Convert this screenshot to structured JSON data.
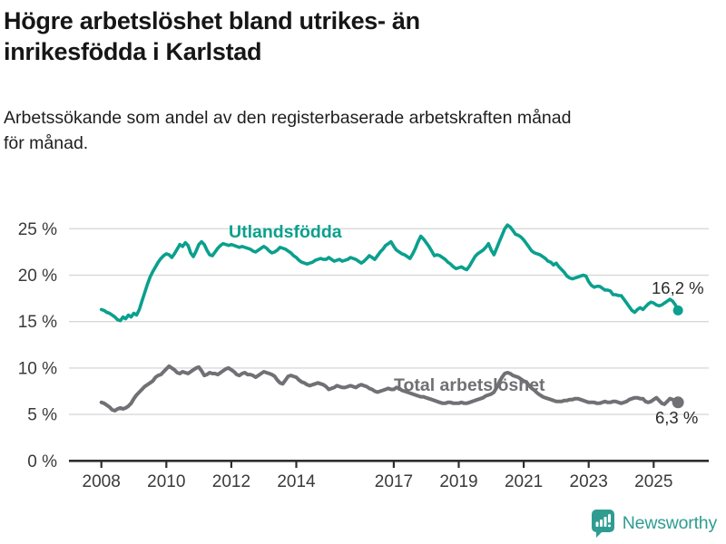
{
  "header": {
    "title": "Högre arbetslöshet bland utrikes- än\ninrikesfödda i Karlstad",
    "subtitle": "Arbetssökande som andel av den registerbaserade arbetskraften månad\nför månad."
  },
  "colors": {
    "series_teal": "#0aa08d",
    "series_gray": "#707075",
    "grid": "#d9d9d9",
    "axis": "#2e2e2e",
    "tick_text": "#3a3a3a",
    "brand_teal": "#2f9c92"
  },
  "chart_data": {
    "type": "line",
    "title": "Högre arbetslöshet bland utrikes- än inrikesfödda i Karlstad",
    "subtitle": "Arbetssökande som andel av den registerbaserade arbetskraften månad för månad.",
    "grid": true,
    "x_axis": {
      "ticks": [
        2008,
        2010,
        2012,
        2014,
        2017,
        2019,
        2021,
        2023,
        2025
      ],
      "tick_labels": [
        "2008",
        "2010",
        "2012",
        "2014",
        "2017",
        "2019",
        "2021",
        "2023",
        "2025"
      ],
      "range": [
        2008.0,
        2025.75
      ]
    },
    "y_axis": {
      "unit": "%",
      "ticks": [
        0,
        5,
        10,
        15,
        20,
        25
      ],
      "tick_labels": [
        "0 %",
        "5 %",
        "10 %",
        "15 %",
        "20 %",
        "25 %"
      ],
      "range": [
        0,
        25
      ]
    },
    "series": [
      {
        "name": "Utlandsfödda",
        "color": "#0aa08d",
        "start": 2008.0,
        "step_years": 0.0833333,
        "end_value": 16.2,
        "end_label": "16,2 %",
        "values": [
          16.3,
          16.2,
          16.0,
          15.9,
          15.7,
          15.5,
          15.2,
          15.1,
          15.5,
          15.3,
          15.7,
          15.5,
          15.9,
          15.7,
          16.3,
          17.2,
          18.1,
          19.0,
          19.8,
          20.4,
          20.9,
          21.4,
          21.8,
          22.1,
          22.3,
          22.2,
          21.9,
          22.3,
          22.8,
          23.3,
          23.1,
          23.5,
          23.2,
          22.4,
          22.0,
          22.6,
          23.3,
          23.6,
          23.3,
          22.7,
          22.2,
          22.1,
          22.5,
          22.9,
          23.2,
          23.4,
          23.3,
          23.2,
          23.3,
          23.2,
          23.1,
          23.0,
          23.1,
          23.0,
          22.9,
          22.8,
          22.6,
          22.5,
          22.7,
          22.9,
          23.1,
          22.9,
          22.6,
          22.4,
          22.5,
          22.7,
          23.0,
          22.9,
          22.8,
          22.6,
          22.4,
          22.1,
          21.9,
          21.6,
          21.4,
          21.3,
          21.2,
          21.3,
          21.4,
          21.6,
          21.7,
          21.8,
          21.7,
          21.7,
          21.9,
          21.7,
          21.5,
          21.6,
          21.7,
          21.5,
          21.6,
          21.7,
          21.9,
          21.8,
          21.7,
          21.5,
          21.3,
          21.5,
          21.8,
          22.1,
          21.9,
          21.7,
          22.1,
          22.5,
          22.8,
          23.2,
          23.4,
          23.6,
          23.1,
          22.7,
          22.5,
          22.3,
          22.2,
          22.0,
          21.8,
          22.3,
          22.9,
          23.6,
          24.2,
          23.9,
          23.5,
          23.1,
          22.6,
          22.1,
          22.2,
          22.1,
          21.9,
          21.7,
          21.4,
          21.2,
          20.9,
          20.7,
          20.8,
          20.9,
          20.7,
          20.6,
          21.0,
          21.5,
          22.0,
          22.3,
          22.5,
          22.7,
          23.0,
          23.4,
          22.7,
          22.2,
          22.9,
          23.6,
          24.3,
          25.0,
          25.4,
          25.2,
          24.8,
          24.4,
          24.3,
          24.1,
          23.8,
          23.4,
          23.0,
          22.6,
          22.4,
          22.3,
          22.2,
          22.0,
          21.8,
          21.5,
          21.4,
          21.1,
          21.3,
          20.9,
          20.6,
          20.3,
          19.9,
          19.7,
          19.6,
          19.7,
          19.8,
          19.9,
          20.0,
          19.9,
          19.3,
          18.9,
          18.7,
          18.8,
          18.8,
          18.6,
          18.4,
          18.4,
          18.3,
          17.9,
          17.9,
          17.8,
          17.8,
          17.4,
          17.0,
          16.6,
          16.2,
          16.0,
          16.3,
          16.5,
          16.3,
          16.6,
          16.9,
          17.1,
          17.0,
          16.8,
          16.7,
          16.8,
          17.0,
          17.2,
          17.4,
          17.2,
          16.8,
          16.2
        ]
      },
      {
        "name": "Total arbetslöshet",
        "color": "#707075",
        "start": 2008.0,
        "step_years": 0.0833333,
        "end_value": 6.3,
        "end_label": "6,3 %",
        "values": [
          6.3,
          6.2,
          6.0,
          5.8,
          5.5,
          5.4,
          5.6,
          5.7,
          5.6,
          5.7,
          5.9,
          6.2,
          6.7,
          7.1,
          7.4,
          7.7,
          8.0,
          8.2,
          8.4,
          8.6,
          9.0,
          9.2,
          9.3,
          9.6,
          9.9,
          10.2,
          10.0,
          9.8,
          9.5,
          9.4,
          9.6,
          9.5,
          9.4,
          9.6,
          9.8,
          10.0,
          10.1,
          9.7,
          9.2,
          9.3,
          9.5,
          9.4,
          9.4,
          9.3,
          9.5,
          9.7,
          9.9,
          10.0,
          9.8,
          9.6,
          9.3,
          9.2,
          9.4,
          9.5,
          9.3,
          9.3,
          9.2,
          9.0,
          9.2,
          9.4,
          9.6,
          9.5,
          9.4,
          9.3,
          9.1,
          8.7,
          8.4,
          8.3,
          8.7,
          9.1,
          9.2,
          9.1,
          9.0,
          8.7,
          8.5,
          8.4,
          8.2,
          8.1,
          8.2,
          8.3,
          8.4,
          8.3,
          8.2,
          8.0,
          7.7,
          7.8,
          7.9,
          8.1,
          8.0,
          7.9,
          7.9,
          8.0,
          8.1,
          8.0,
          7.9,
          8.1,
          8.2,
          8.1,
          8.0,
          7.8,
          7.7,
          7.5,
          7.4,
          7.5,
          7.6,
          7.7,
          7.8,
          7.7,
          7.7,
          7.9,
          7.8,
          7.6,
          7.5,
          7.4,
          7.3,
          7.2,
          7.1,
          7.0,
          6.9,
          6.9,
          6.8,
          6.7,
          6.6,
          6.5,
          6.4,
          6.3,
          6.2,
          6.2,
          6.3,
          6.3,
          6.2,
          6.2,
          6.2,
          6.3,
          6.2,
          6.2,
          6.3,
          6.4,
          6.5,
          6.6,
          6.7,
          6.8,
          7.0,
          7.1,
          7.2,
          7.4,
          7.9,
          8.5,
          9.0,
          9.4,
          9.5,
          9.4,
          9.2,
          9.1,
          9.0,
          8.8,
          8.6,
          8.5,
          8.1,
          7.8,
          7.6,
          7.3,
          7.1,
          6.9,
          6.8,
          6.7,
          6.6,
          6.5,
          6.4,
          6.4,
          6.4,
          6.5,
          6.5,
          6.6,
          6.6,
          6.7,
          6.7,
          6.6,
          6.5,
          6.4,
          6.3,
          6.3,
          6.3,
          6.2,
          6.2,
          6.3,
          6.4,
          6.3,
          6.3,
          6.4,
          6.4,
          6.3,
          6.2,
          6.3,
          6.4,
          6.6,
          6.7,
          6.8,
          6.8,
          6.7,
          6.7,
          6.4,
          6.3,
          6.4,
          6.6,
          6.8,
          6.5,
          6.2,
          6.1,
          6.4,
          6.7,
          6.6,
          6.4,
          6.3
        ]
      }
    ],
    "legend_position": "inline-labels"
  },
  "footer": {
    "brand": "Newsworthy"
  }
}
